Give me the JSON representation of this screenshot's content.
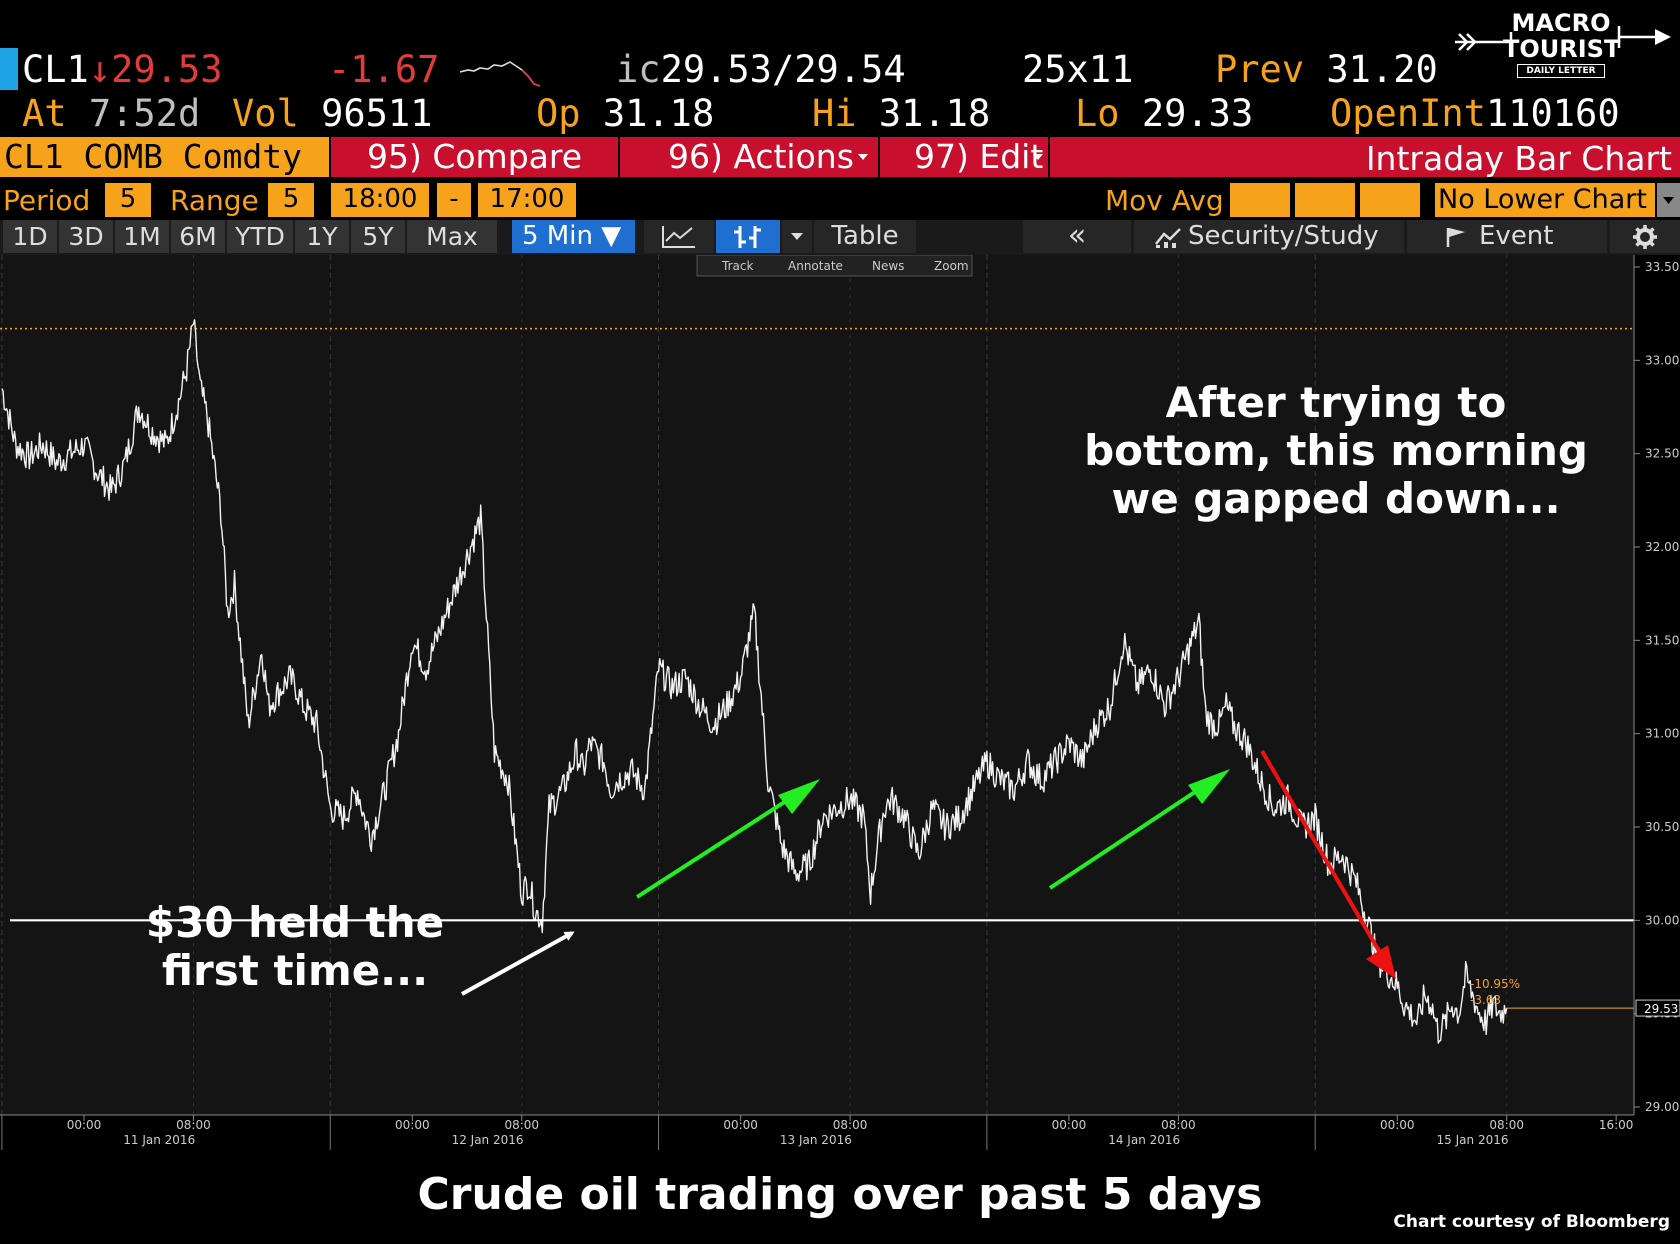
{
  "quote": {
    "ticker": "CL1",
    "arrow": "↓",
    "last": "29.53",
    "change": "-1.67",
    "ic_label": "ic",
    "bid_ask": "29.53/29.54",
    "size": "25x11",
    "prev_label": "Prev",
    "prev": "31.20",
    "at_label": "At",
    "time": "7:52d",
    "vol_label": "Vol",
    "vol": "96511",
    "op_label": "Op",
    "op": "31.18",
    "hi_label": "Hi",
    "hi": "31.18",
    "lo_label": "Lo",
    "lo": "29.33",
    "openint_label": "OpenInt",
    "openint": "110160"
  },
  "logo": {
    "line1": "MACRO",
    "line2": "TOURIST",
    "line3": "DAILY LETTER"
  },
  "menu": {
    "security": "CL1 COMB Comdty",
    "compare": "95) Compare",
    "actions": "96) Actions",
    "edit": "97) Edit",
    "title": "Intraday Bar Chart"
  },
  "settings": {
    "period_label": "Period",
    "period": "5",
    "range_label": "Range",
    "range": "5",
    "start": "18:00",
    "dash": "-",
    "end": "17:00",
    "movavg_label": "Mov Avg",
    "lower": "No Lower Chart"
  },
  "toolbar": {
    "ranges": [
      "1D",
      "3D",
      "1M",
      "6M",
      "YTD",
      "1Y",
      "5Y",
      "Max"
    ],
    "interval": "5 Min ▼",
    "table": "Table",
    "back": "«",
    "security_study": "Security/Study",
    "event": "Event"
  },
  "mini_toolbar": {
    "track": "Track",
    "annotate": "Annotate",
    "news": "News",
    "zoom": "Zoom"
  },
  "annotations": {
    "held_line1": "$30 held the",
    "held_line2": "first time...",
    "gap_line1": "After trying to",
    "gap_line2": "bottom, this morning",
    "gap_line3": "we gapped down..."
  },
  "chart_data": {
    "type": "line",
    "title": "Crude oil trading over past 5 days",
    "credit": "Chart courtesy of Bloomberg",
    "ylim": [
      29.0,
      33.5
    ],
    "y_ticks": [
      "33.50",
      "33.00",
      "32.50",
      "32.00",
      "31.50",
      "31.00",
      "30.50",
      "30.00",
      "29.50",
      "29.00"
    ],
    "x_ticks": [
      {
        "t": 0,
        "label": "00:00"
      },
      {
        "t": 8,
        "label": "08:00"
      },
      {
        "t": 24,
        "label": "00:00"
      },
      {
        "t": 32,
        "label": "08:00"
      },
      {
        "t": 48,
        "label": "00:00"
      },
      {
        "t": 56,
        "label": "08:00"
      },
      {
        "t": 72,
        "label": "00:00"
      },
      {
        "t": 80,
        "label": "08:00"
      },
      {
        "t": 96,
        "label": "00:00"
      },
      {
        "t": 104,
        "label": "08:00"
      },
      {
        "t": 112,
        "label": "16:00"
      }
    ],
    "dates": [
      {
        "t": 5.5,
        "label": "11 Jan 2016"
      },
      {
        "t": 29.5,
        "label": "12 Jan 2016"
      },
      {
        "t": 53.5,
        "label": "13 Jan 2016"
      },
      {
        "t": 77.5,
        "label": "14 Jan 2016"
      },
      {
        "t": 101.5,
        "label": "15 Jan 2016"
      }
    ],
    "session_breaks": [
      -6,
      18,
      42,
      66,
      90
    ],
    "support_level": 30.0,
    "prev_close_level": 33.17,
    "last_value": "29.53",
    "pct_change": "-10.95%",
    "abs_change": "-3.63",
    "series": [
      {
        "x": [
          -6.0,
          -5.0,
          -4.0,
          -3.0,
          -2.0,
          -1.0,
          0.0,
          1.0,
          2.0,
          3.0,
          4.0,
          5.0,
          6.0,
          7.0,
          7.5,
          8.0,
          8.5,
          9.0,
          10.0,
          10.5,
          11.0,
          12.0,
          13.0,
          13.5,
          14.0,
          15.0,
          15.5,
          16.0,
          17.0,
          18.0,
          19.0,
          20.0,
          20.5,
          21.0,
          22.0,
          23.0,
          24.0,
          25.0,
          26.0,
          27.0,
          28.0,
          29.0,
          30.0,
          31.0,
          32.0,
          32.5,
          33.0,
          33.5,
          34.0,
          35.0,
          36.0,
          36.5,
          37.0,
          38.0,
          38.5,
          39.0,
          40.0,
          41.0,
          42.0,
          43.0,
          44.0,
          45.0,
          46.0,
          47.0,
          48.0,
          49.0,
          50.0,
          51.0,
          52.0,
          53.0,
          54.0,
          55.0,
          56.0,
          57.0,
          57.5,
          58.0,
          58.5,
          59.0,
          60.0,
          61.0,
          62.0,
          63.0,
          64.0,
          65.0,
          66.0,
          67.0,
          68.0,
          69.0,
          70.0,
          71.0,
          72.0,
          73.0,
          74.0,
          75.0,
          76.0,
          77.0,
          78.0,
          79.0,
          80.0,
          81.0,
          81.5,
          82.0,
          82.5,
          83.0,
          83.5,
          84.0,
          84.5,
          85.0,
          86.0,
          87.0,
          88.0,
          89.0,
          90.0,
          91.0,
          92.0,
          93.0,
          94.0,
          94.5,
          95.0,
          95.5,
          96.0,
          96.5,
          97.0,
          97.5,
          98.0,
          98.5,
          99.0,
          99.5,
          100.0,
          100.5,
          101.0,
          101.5,
          102.0,
          102.5,
          103.0,
          103.5,
          104.0
        ],
        "y": [
          32.85,
          32.55,
          32.48,
          32.55,
          32.45,
          32.5,
          32.55,
          32.4,
          32.3,
          32.45,
          32.75,
          32.62,
          32.55,
          32.8,
          32.95,
          33.2,
          32.85,
          32.7,
          32.2,
          31.65,
          31.8,
          31.05,
          31.45,
          31.15,
          31.2,
          31.3,
          31.25,
          31.15,
          31.05,
          30.6,
          30.55,
          30.7,
          30.55,
          30.45,
          30.7,
          31.0,
          31.5,
          31.35,
          31.55,
          31.75,
          31.95,
          32.15,
          30.9,
          30.75,
          30.15,
          30.2,
          30.05,
          30.0,
          30.6,
          30.7,
          30.9,
          30.8,
          30.95,
          30.85,
          30.7,
          30.75,
          30.8,
          30.7,
          31.35,
          31.25,
          31.3,
          31.15,
          31.05,
          31.15,
          31.3,
          31.65,
          30.75,
          30.4,
          30.25,
          30.3,
          30.55,
          30.6,
          30.65,
          30.55,
          30.15,
          30.4,
          30.6,
          30.65,
          30.55,
          30.35,
          30.6,
          30.5,
          30.55,
          30.7,
          30.85,
          30.75,
          30.7,
          30.85,
          30.75,
          30.85,
          30.95,
          30.85,
          31.05,
          31.15,
          31.5,
          31.25,
          31.35,
          31.15,
          31.3,
          31.5,
          31.6,
          31.1,
          31.05,
          31.05,
          31.15,
          31.05,
          31.0,
          30.95,
          30.75,
          30.6,
          30.65,
          30.5,
          30.55,
          30.3,
          30.35,
          30.2,
          29.95,
          29.8,
          29.75,
          29.7,
          29.65,
          29.55,
          29.5,
          29.45,
          29.6,
          29.55,
          29.4,
          29.45,
          29.55,
          29.5,
          29.7,
          29.6,
          29.5,
          29.45,
          29.55,
          29.5,
          29.53
        ]
      }
    ]
  }
}
